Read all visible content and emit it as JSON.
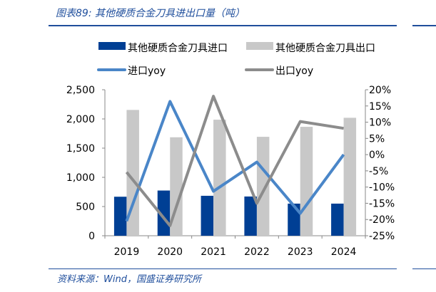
{
  "title": "图表89:  其他硬质合金刀具进出口量（吨）",
  "source": "资料来源：Wind，国盛证券研究所",
  "colors": {
    "import_bar": "#003f94",
    "export_bar": "#c8c8c8",
    "import_yoy": "#4a86c8",
    "export_yoy": "#8c8c8c",
    "accent": "#1f4e9c"
  },
  "chart_data": {
    "type": "bar",
    "title": "其他硬质合金刀具进出口量（吨）",
    "categories": [
      "2019",
      "2020",
      "2021",
      "2022",
      "2023",
      "2024"
    ],
    "series": [
      {
        "name": "其他硬质合金刀具进口",
        "type": "bar",
        "axis": "left",
        "values": [
          668,
          774,
          684,
          672,
          550,
          550
        ]
      },
      {
        "name": "其他硬质合金刀具出口",
        "type": "bar",
        "axis": "left",
        "values": [
          2154,
          1686,
          1987,
          1694,
          1865,
          2020
        ]
      },
      {
        "name": "进口yoy",
        "type": "line",
        "axis": "right",
        "values": [
          -20.5,
          16.4,
          -11.3,
          -2.3,
          -18.1,
          0.0
        ]
      },
      {
        "name": "出口yoy",
        "type": "line",
        "axis": "right",
        "values": [
          -5.4,
          -21.9,
          18.0,
          -15.0,
          10.2,
          8.1
        ]
      }
    ],
    "ylim_left": [
      0,
      2500
    ],
    "yticks_left": [
      "0",
      "500",
      "1,000",
      "1,500",
      "2,000",
      "2,500"
    ],
    "ylim_right": [
      -25,
      20
    ],
    "yticks_right": [
      "-25%",
      "-20%",
      "-15%",
      "-10%",
      "-5%",
      "0%",
      "5%",
      "10%",
      "15%",
      "20%"
    ],
    "legend_placement": "top",
    "grid": false
  }
}
